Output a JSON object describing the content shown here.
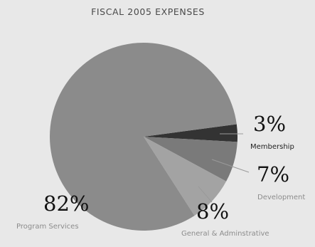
{
  "chart_data": {
    "type": "pie",
    "title": "FISCAL 2005 EXPENSES",
    "slices": [
      {
        "label": "Membership",
        "percent_label": "3%",
        "value": 3,
        "color": "#333333"
      },
      {
        "label": "Development",
        "percent_label": "7%",
        "value": 7,
        "color": "#7a7a7a"
      },
      {
        "label": "General & Adminstrative",
        "percent_label": "8%",
        "value": 8,
        "color": "#a3a3a3"
      },
      {
        "label": "Program Services",
        "percent_label": "82%",
        "value": 82,
        "color": "#8b8b8b"
      }
    ]
  }
}
